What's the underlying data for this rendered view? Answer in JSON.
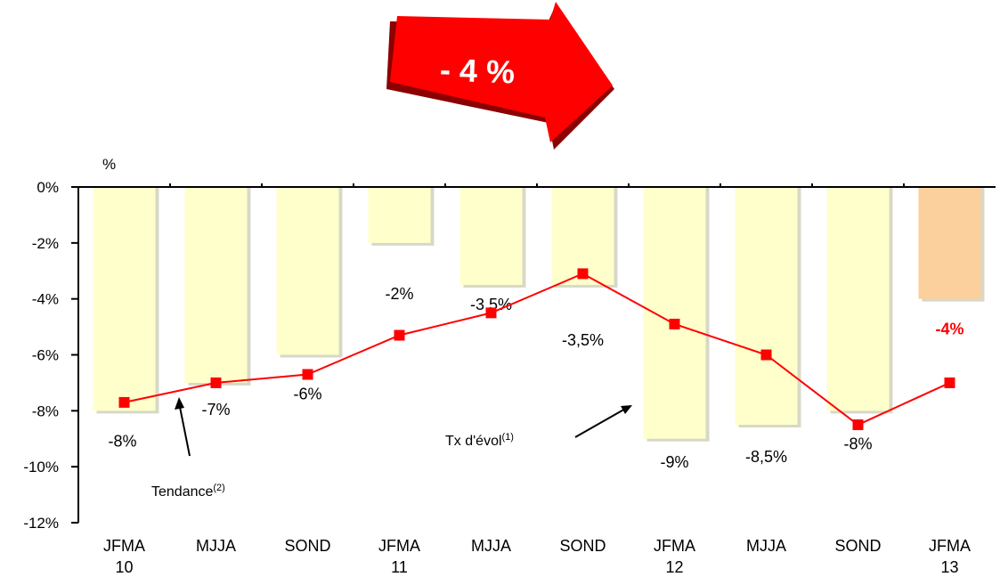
{
  "banner": {
    "label": "- 4 %",
    "color": "#ff0000"
  },
  "chart_data": {
    "type": "bar",
    "ylabel": "%",
    "ylim": [
      -12,
      0
    ],
    "yticks": [
      0,
      -2,
      -4,
      -6,
      -8,
      -10,
      -12
    ],
    "ytick_labels": [
      "0%",
      "-2%",
      "-4%",
      "-6%",
      "-8%",
      "-10%",
      "-12%"
    ],
    "categories": [
      [
        "JFMA",
        "10"
      ],
      [
        "MJJA",
        ""
      ],
      [
        "SOND",
        ""
      ],
      [
        "JFMA",
        "11"
      ],
      [
        "MJJA",
        ""
      ],
      [
        "SOND",
        ""
      ],
      [
        "JFMA",
        "12"
      ],
      [
        "MJJA",
        ""
      ],
      [
        "SOND",
        ""
      ],
      [
        "JFMA",
        "13"
      ]
    ],
    "series": [
      {
        "kind": "bar",
        "values": [
          -8,
          -7,
          -6,
          -2,
          -3.5,
          -3.5,
          -9,
          -8.5,
          -8,
          -4
        ],
        "labels": [
          "-8%",
          "-7%",
          "-6%",
          "-2%",
          "-3,5%",
          "-3,5%",
          "-9%",
          "-8,5%",
          "-8%",
          "-4%"
        ],
        "color": "#ffffcc",
        "highlight_color": "#fcd09c",
        "highlight_label_color": "#ff0000"
      },
      {
        "kind": "line",
        "values": [
          -7.7,
          -7.0,
          -6.7,
          -5.3,
          -4.5,
          -3.1,
          -4.9,
          -6.0,
          -8.5,
          -7.0
        ],
        "color": "#ff0000"
      }
    ],
    "annotations": [
      {
        "text": "Tendance",
        "sup": "(2)"
      },
      {
        "text": "Tx d'évol",
        "sup": "(1)"
      }
    ]
  }
}
